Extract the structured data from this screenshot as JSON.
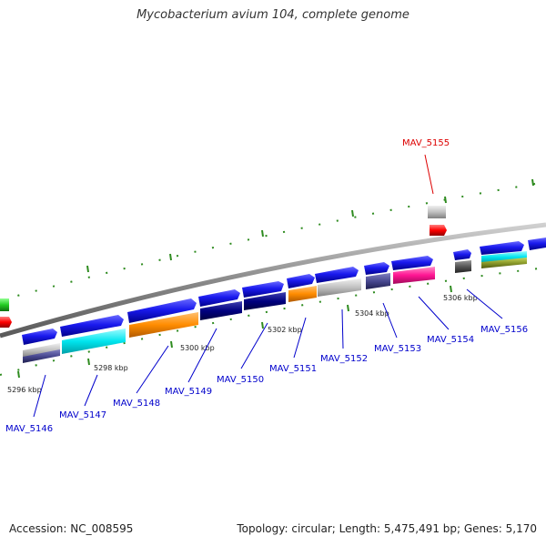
{
  "title": "Mycobacterium avium 104, complete genome",
  "footer": {
    "accession": "Accession: NC_008595",
    "info": "Topology: circular; Length: 5,475,491 bp; Genes: 5,170"
  },
  "tick_labels": [
    "5296 kbp",
    "5298 kbp",
    "5300 kbp",
    "5302 kbp",
    "5304 kbp",
    "5306 kbp"
  ],
  "gene_labels": [
    {
      "name": "MAV_5146",
      "color": "#0000cc"
    },
    {
      "name": "MAV_5147",
      "color": "#0000cc"
    },
    {
      "name": "MAV_5148",
      "color": "#0000cc"
    },
    {
      "name": "MAV_5149",
      "color": "#0000cc"
    },
    {
      "name": "MAV_5150",
      "color": "#0000cc"
    },
    {
      "name": "MAV_5151",
      "color": "#0000cc"
    },
    {
      "name": "MAV_5152",
      "color": "#0000cc"
    },
    {
      "name": "MAV_5153",
      "color": "#0000cc"
    },
    {
      "name": "MAV_5154",
      "color": "#0000cc"
    },
    {
      "name": "MAV_5155",
      "color": "#dd0000"
    },
    {
      "name": "MAV_5156",
      "color": "#0000cc"
    }
  ],
  "colors": {
    "backbone": "#8a8a8a",
    "tick": "#2e8b1f",
    "gene_forward": "#1a1aee",
    "cog_cyan": "#00e5ee",
    "cog_orange": "#ff8c00",
    "cog_navy": "#000080",
    "cog_gray": "#c0c0c0",
    "cog_slate": "#484890",
    "cog_magenta": "#ff1493",
    "cog_dark": "#555555",
    "cog_olive": "#8b9a2a",
    "cog_red": "#ff0000",
    "cog_green": "#22cc22"
  }
}
